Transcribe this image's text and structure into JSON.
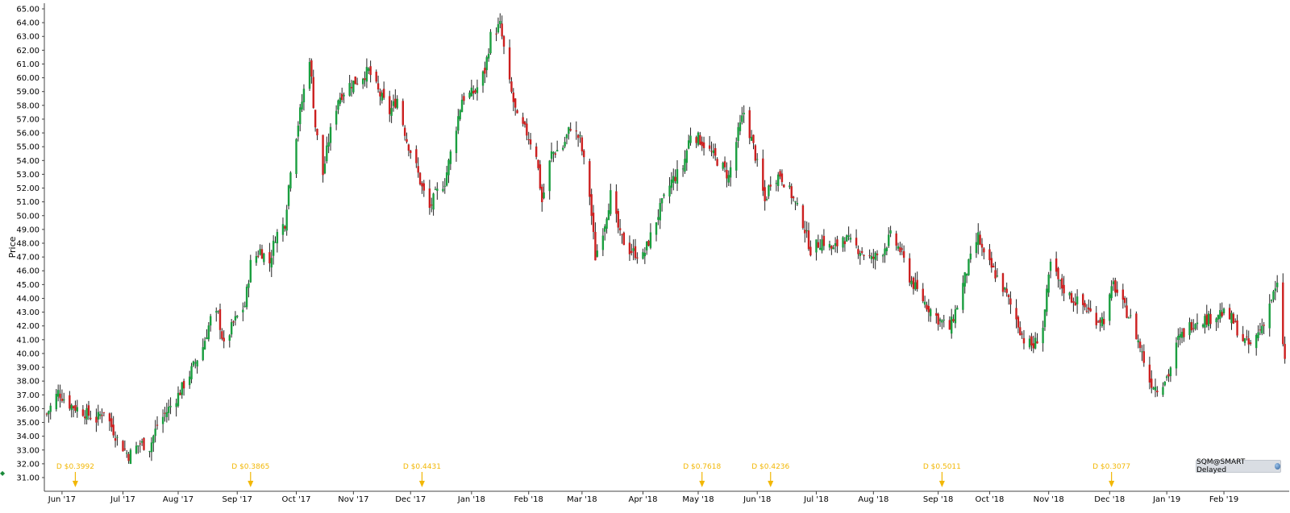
{
  "chart_data": {
    "type": "candlestick",
    "ylabel": "Price",
    "ylim": [
      30,
      65
    ],
    "yticks": [
      "65.00",
      "64.00",
      "63.00",
      "62.00",
      "61.00",
      "60.00",
      "59.00",
      "58.00",
      "57.00",
      "56.00",
      "55.00",
      "54.00",
      "53.00",
      "52.00",
      "51.00",
      "50.00",
      "49.00",
      "48.00",
      "47.00",
      "46.00",
      "45.00",
      "44.00",
      "43.00",
      "42.00",
      "41.00",
      "40.00",
      "39.00",
      "38.00",
      "37.00",
      "36.00",
      "35.00",
      "34.00",
      "33.00",
      "32.00",
      "31.00"
    ],
    "date_range": [
      "2017-05-24",
      "2019-03-06"
    ],
    "xticks": [
      {
        "label": "Jun '17",
        "date": "2017-06-01"
      },
      {
        "label": "Jul '17",
        "date": "2017-07-03"
      },
      {
        "label": "Aug '17",
        "date": "2017-08-01"
      },
      {
        "label": "Sep '17",
        "date": "2017-09-01"
      },
      {
        "label": "Oct '17",
        "date": "2017-10-02"
      },
      {
        "label": "Nov '17",
        "date": "2017-11-01"
      },
      {
        "label": "Dec '17",
        "date": "2017-12-01"
      },
      {
        "label": "Jan '18",
        "date": "2018-01-02"
      },
      {
        "label": "Feb '18",
        "date": "2018-02-01"
      },
      {
        "label": "Mar '18",
        "date": "2018-03-01"
      },
      {
        "label": "Apr '18",
        "date": "2018-04-02"
      },
      {
        "label": "May '18",
        "date": "2018-05-01"
      },
      {
        "label": "Jun '18",
        "date": "2018-06-01"
      },
      {
        "label": "Jul '18",
        "date": "2018-07-02"
      },
      {
        "label": "Aug '18",
        "date": "2018-08-01"
      },
      {
        "label": "Sep '18",
        "date": "2018-09-04"
      },
      {
        "label": "Oct '18",
        "date": "2018-10-01"
      },
      {
        "label": "Nov '18",
        "date": "2018-11-01"
      },
      {
        "label": "Dec '18",
        "date": "2018-12-03"
      },
      {
        "label": "Jan '19",
        "date": "2019-01-02"
      },
      {
        "label": "Feb '19",
        "date": "2019-02-01"
      }
    ],
    "series": [
      {
        "date": "2017-05-24",
        "close": 35.6
      },
      {
        "date": "2017-05-30",
        "close": 37.2
      },
      {
        "date": "2017-06-05",
        "close": 36.3
      },
      {
        "date": "2017-06-12",
        "close": 35.8
      },
      {
        "date": "2017-06-19",
        "close": 35.2
      },
      {
        "date": "2017-06-23",
        "close": 35.9
      },
      {
        "date": "2017-06-30",
        "close": 33.8
      },
      {
        "date": "2017-07-06",
        "close": 32.6
      },
      {
        "date": "2017-07-12",
        "close": 33.5
      },
      {
        "date": "2017-07-17",
        "close": 33.2
      },
      {
        "date": "2017-07-21",
        "close": 34.8
      },
      {
        "date": "2017-07-26",
        "close": 35.8
      },
      {
        "date": "2017-08-01",
        "close": 37.0
      },
      {
        "date": "2017-08-07",
        "close": 38.5
      },
      {
        "date": "2017-08-14",
        "close": 40.5
      },
      {
        "date": "2017-08-18",
        "close": 42.5
      },
      {
        "date": "2017-08-22",
        "close": 42.8
      },
      {
        "date": "2017-08-25",
        "close": 40.5
      },
      {
        "date": "2017-08-30",
        "close": 42.2
      },
      {
        "date": "2017-09-05",
        "close": 43.5
      },
      {
        "date": "2017-09-08",
        "close": 46.5
      },
      {
        "date": "2017-09-13",
        "close": 47.5
      },
      {
        "date": "2017-09-18",
        "close": 46.6
      },
      {
        "date": "2017-09-21",
        "close": 48.5
      },
      {
        "date": "2017-09-26",
        "close": 49.5
      },
      {
        "date": "2017-09-29",
        "close": 53.5
      },
      {
        "date": "2017-10-04",
        "close": 57.5
      },
      {
        "date": "2017-10-09",
        "close": 61.5
      },
      {
        "date": "2017-10-12",
        "close": 56.5
      },
      {
        "date": "2017-10-16",
        "close": 53.0
      },
      {
        "date": "2017-10-19",
        "close": 55.5
      },
      {
        "date": "2017-10-24",
        "close": 58.5
      },
      {
        "date": "2017-10-30",
        "close": 59.5
      },
      {
        "date": "2017-11-03",
        "close": 59.8
      },
      {
        "date": "2017-11-09",
        "close": 60.5
      },
      {
        "date": "2017-11-14",
        "close": 59.0
      },
      {
        "date": "2017-11-20",
        "close": 57.5
      },
      {
        "date": "2017-11-24",
        "close": 58.5
      },
      {
        "date": "2017-11-29",
        "close": 55.5
      },
      {
        "date": "2017-12-04",
        "close": 53.5
      },
      {
        "date": "2017-12-07",
        "close": 52.0
      },
      {
        "date": "2017-12-11",
        "close": 50.5
      },
      {
        "date": "2017-12-14",
        "close": 51.5
      },
      {
        "date": "2017-12-19",
        "close": 52.5
      },
      {
        "date": "2017-12-28",
        "close": 58.5
      },
      {
        "date": "2018-01-04",
        "close": 59.0
      },
      {
        "date": "2018-01-09",
        "close": 60.5
      },
      {
        "date": "2018-01-12",
        "close": 63.0
      },
      {
        "date": "2018-01-17",
        "close": 63.8
      },
      {
        "date": "2018-01-22",
        "close": 59.5
      },
      {
        "date": "2018-01-26",
        "close": 57.0
      },
      {
        "date": "2018-01-31",
        "close": 56.0
      },
      {
        "date": "2018-02-05",
        "close": 54.5
      },
      {
        "date": "2018-02-08",
        "close": 51.0
      },
      {
        "date": "2018-02-13",
        "close": 54.5
      },
      {
        "date": "2018-02-19",
        "close": 55.0
      },
      {
        "date": "2018-02-23",
        "close": 56.5
      },
      {
        "date": "2018-02-28",
        "close": 55.5
      },
      {
        "date": "2018-03-05",
        "close": 51.5
      },
      {
        "date": "2018-03-08",
        "close": 47.0
      },
      {
        "date": "2018-03-13",
        "close": 49.5
      },
      {
        "date": "2018-03-16",
        "close": 51.5
      },
      {
        "date": "2018-03-21",
        "close": 48.5
      },
      {
        "date": "2018-03-26",
        "close": 47.5
      },
      {
        "date": "2018-04-02",
        "close": 47.0
      },
      {
        "date": "2018-04-06",
        "close": 48.5
      },
      {
        "date": "2018-04-11",
        "close": 50.5
      },
      {
        "date": "2018-04-17",
        "close": 52.5
      },
      {
        "date": "2018-04-23",
        "close": 53.5
      },
      {
        "date": "2018-04-27",
        "close": 56.0
      },
      {
        "date": "2018-05-02",
        "close": 55.5
      },
      {
        "date": "2018-05-08",
        "close": 54.5
      },
      {
        "date": "2018-05-14",
        "close": 53.5
      },
      {
        "date": "2018-05-17",
        "close": 52.8
      },
      {
        "date": "2018-05-22",
        "close": 56.0
      },
      {
        "date": "2018-05-25",
        "close": 57.5
      },
      {
        "date": "2018-05-30",
        "close": 55.0
      },
      {
        "date": "2018-06-05",
        "close": 51.0
      },
      {
        "date": "2018-06-08",
        "close": 52.5
      },
      {
        "date": "2018-06-13",
        "close": 53.0
      },
      {
        "date": "2018-06-19",
        "close": 51.5
      },
      {
        "date": "2018-06-25",
        "close": 49.5
      },
      {
        "date": "2018-06-29",
        "close": 47.5
      },
      {
        "date": "2018-07-05",
        "close": 48.2
      },
      {
        "date": "2018-07-11",
        "close": 47.5
      },
      {
        "date": "2018-07-16",
        "close": 48.5
      },
      {
        "date": "2018-07-20",
        "close": 48.0
      },
      {
        "date": "2018-07-25",
        "close": 47.5
      },
      {
        "date": "2018-07-31",
        "close": 46.8
      },
      {
        "date": "2018-08-06",
        "close": 47.5
      },
      {
        "date": "2018-08-10",
        "close": 48.5
      },
      {
        "date": "2018-08-15",
        "close": 47.5
      },
      {
        "date": "2018-08-20",
        "close": 45.5
      },
      {
        "date": "2018-08-24",
        "close": 44.5
      },
      {
        "date": "2018-08-29",
        "close": 43.5
      },
      {
        "date": "2018-09-04",
        "close": 42.5
      },
      {
        "date": "2018-09-10",
        "close": 41.8
      },
      {
        "date": "2018-09-14",
        "close": 43.5
      },
      {
        "date": "2018-09-19",
        "close": 46.0
      },
      {
        "date": "2018-09-25",
        "close": 48.5
      },
      {
        "date": "2018-09-28",
        "close": 47.0
      },
      {
        "date": "2018-10-03",
        "close": 46.0
      },
      {
        "date": "2018-10-09",
        "close": 44.5
      },
      {
        "date": "2018-10-15",
        "close": 42.5
      },
      {
        "date": "2018-10-19",
        "close": 41.0
      },
      {
        "date": "2018-10-24",
        "close": 40.5
      },
      {
        "date": "2018-10-29",
        "close": 42.0
      },
      {
        "date": "2018-11-02",
        "close": 46.5
      },
      {
        "date": "2018-11-07",
        "close": 45.0
      },
      {
        "date": "2018-11-13",
        "close": 44.0
      },
      {
        "date": "2018-11-19",
        "close": 43.5
      },
      {
        "date": "2018-11-26",
        "close": 42.5
      },
      {
        "date": "2018-11-30",
        "close": 42.5
      },
      {
        "date": "2018-12-05",
        "close": 45.0
      },
      {
        "date": "2018-12-10",
        "close": 43.5
      },
      {
        "date": "2018-12-14",
        "close": 42.5
      },
      {
        "date": "2018-12-19",
        "close": 40.5
      },
      {
        "date": "2018-12-24",
        "close": 38.0
      },
      {
        "date": "2018-12-28",
        "close": 37.5
      },
      {
        "date": "2019-01-03",
        "close": 38.5
      },
      {
        "date": "2019-01-08",
        "close": 41.0
      },
      {
        "date": "2019-01-14",
        "close": 42.0
      },
      {
        "date": "2019-01-18",
        "close": 42.5
      },
      {
        "date": "2019-01-24",
        "close": 42.5
      },
      {
        "date": "2019-01-30",
        "close": 43.0
      },
      {
        "date": "2019-02-05",
        "close": 42.5
      },
      {
        "date": "2019-02-11",
        "close": 41.0
      },
      {
        "date": "2019-02-15",
        "close": 40.5
      },
      {
        "date": "2019-02-21",
        "close": 42.0
      },
      {
        "date": "2019-02-26",
        "close": 44.0
      },
      {
        "date": "2019-03-01",
        "close": 44.8
      },
      {
        "date": "2019-03-05",
        "close": 39.5
      }
    ],
    "dividends": [
      {
        "label": "D $0.3992",
        "date": "2017-06-08"
      },
      {
        "label": "D $0.3865",
        "date": "2017-09-08"
      },
      {
        "label": "D $0.4431",
        "date": "2017-12-07"
      },
      {
        "label": "D $0.7618",
        "date": "2018-05-03"
      },
      {
        "label": "D $0.4236",
        "date": "2018-06-08"
      },
      {
        "label": "D $0.5011",
        "date": "2018-09-06"
      },
      {
        "label": "D $0.3077",
        "date": "2018-12-04"
      }
    ],
    "colors": {
      "up": "#1a9e3f",
      "down": "#cc1f1f",
      "wick": "#222222",
      "dividend": "#f2b705",
      "axis": "#444444"
    }
  },
  "status_badge": {
    "text": "SQM@SMART Delayed",
    "icon": "globe-icon"
  }
}
